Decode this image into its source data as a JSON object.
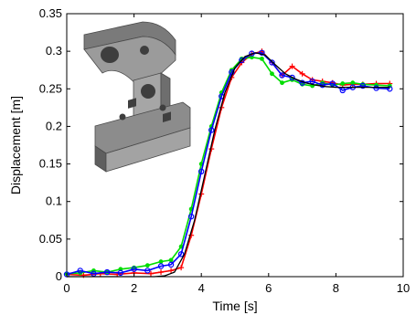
{
  "chart_data": {
    "type": "line",
    "xlabel": "Time [s]",
    "ylabel": "Displacement [m]",
    "xlim": [
      0,
      10
    ],
    "ylim": [
      0,
      0.35
    ],
    "xticks": [
      0,
      2,
      4,
      6,
      8,
      10
    ],
    "xtick_labels": [
      "0",
      "2",
      "4",
      "6",
      "8",
      "10"
    ],
    "yticks": [
      0,
      0.05,
      0.1,
      0.15,
      0.2,
      0.25,
      0.3,
      0.35
    ],
    "ytick_labels": [
      "0",
      "0.05",
      "0.1",
      "0.15",
      "0.2",
      "0.25",
      "0.3",
      "0.35"
    ],
    "grid": false,
    "legend": "none",
    "inset": "3D rendering of grey mechanical part",
    "series": [
      {
        "color": "#000000",
        "marker": "none",
        "x": [
          0,
          2.6,
          2.9,
          3.2,
          3.5,
          3.8,
          4.1,
          4.4,
          4.7,
          5.0,
          5.3,
          5.6,
          5.9,
          6.2,
          6.5,
          6.8,
          7.1,
          7.4,
          7.7,
          8.0,
          8.3,
          8.6,
          9.0,
          9.6
        ],
        "y": [
          0.0,
          0.0,
          0.001,
          0.006,
          0.03,
          0.075,
          0.135,
          0.195,
          0.245,
          0.278,
          0.293,
          0.298,
          0.295,
          0.282,
          0.27,
          0.263,
          0.258,
          0.255,
          0.253,
          0.252,
          0.252,
          0.252,
          0.252,
          0.252
        ]
      },
      {
        "color": "#ff0000",
        "marker": "+",
        "x": [
          0,
          0.5,
          1.0,
          1.5,
          2.0,
          2.5,
          2.8,
          3.1,
          3.4,
          3.7,
          4.0,
          4.3,
          4.6,
          4.9,
          5.2,
          5.5,
          5.8,
          6.1,
          6.4,
          6.7,
          7.0,
          7.3,
          7.6,
          7.9,
          8.2,
          8.5,
          8.8,
          9.2,
          9.6
        ],
        "y": [
          0.003,
          0.002,
          0.004,
          0.003,
          0.005,
          0.004,
          0.006,
          0.008,
          0.012,
          0.055,
          0.11,
          0.17,
          0.225,
          0.265,
          0.285,
          0.296,
          0.3,
          0.285,
          0.268,
          0.28,
          0.27,
          0.262,
          0.26,
          0.258,
          0.255,
          0.256,
          0.256,
          0.257,
          0.257
        ]
      },
      {
        "color": "#00dd00",
        "marker": "*",
        "x": [
          0,
          0.4,
          0.8,
          1.2,
          1.6,
          2.0,
          2.4,
          2.8,
          3.1,
          3.4,
          3.7,
          4.0,
          4.3,
          4.6,
          4.9,
          5.2,
          5.5,
          5.8,
          6.1,
          6.4,
          6.7,
          7.0,
          7.3,
          7.6,
          7.9,
          8.2,
          8.5,
          8.8,
          9.2,
          9.6
        ],
        "y": [
          0.004,
          0.005,
          0.008,
          0.006,
          0.01,
          0.012,
          0.015,
          0.02,
          0.022,
          0.04,
          0.09,
          0.15,
          0.2,
          0.245,
          0.275,
          0.29,
          0.292,
          0.29,
          0.27,
          0.258,
          0.262,
          0.256,
          0.254,
          0.258,
          0.255,
          0.257,
          0.258,
          0.256,
          0.255,
          0.254
        ]
      },
      {
        "color": "#0000ff",
        "marker": "o",
        "x": [
          0,
          0.4,
          0.8,
          1.2,
          1.6,
          2.0,
          2.4,
          2.8,
          3.1,
          3.4,
          3.7,
          4.0,
          4.3,
          4.6,
          4.9,
          5.2,
          5.5,
          5.8,
          6.1,
          6.4,
          6.7,
          7.0,
          7.3,
          7.6,
          7.9,
          8.2,
          8.5,
          8.8,
          9.2,
          9.6
        ],
        "y": [
          0.003,
          0.008,
          0.004,
          0.006,
          0.005,
          0.01,
          0.008,
          0.014,
          0.016,
          0.03,
          0.08,
          0.14,
          0.195,
          0.24,
          0.272,
          0.288,
          0.297,
          0.298,
          0.285,
          0.268,
          0.265,
          0.258,
          0.26,
          0.255,
          0.257,
          0.248,
          0.252,
          0.254,
          0.251,
          0.25
        ]
      }
    ]
  }
}
